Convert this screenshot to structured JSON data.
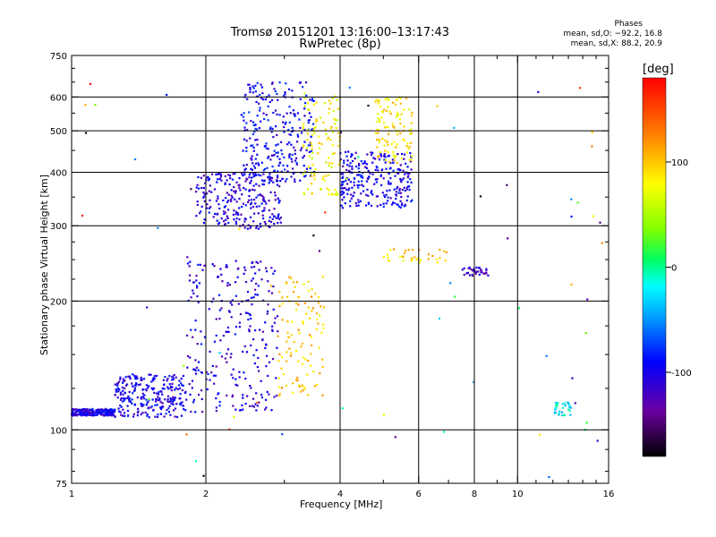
{
  "header": {
    "title_line1": "Tromsø 20151201 13:16:00–13:17:43",
    "title_line2": "RwPretec (8p)",
    "stats_heading": "Phases",
    "stats_o": "mean, sd,O: −92.2, 16.8",
    "stats_x": "mean, sd,X:  88.2, 20.9"
  },
  "chart_data": {
    "type": "scatter",
    "xlabel": "Frequency [MHz]",
    "ylabel": "Stationary phase Virtual Height [km]",
    "x_scale": "log",
    "y_scale": "log",
    "xlim": [
      1,
      16
    ],
    "ylim": [
      75,
      750
    ],
    "x_ticks": [
      1,
      2,
      4,
      6,
      8,
      10,
      16
    ],
    "x_gridlines": [
      2,
      4,
      6,
      8,
      10
    ],
    "y_ticks": [
      75,
      100,
      200,
      300,
      400,
      500,
      600,
      750
    ],
    "y_gridlines": [
      100,
      200,
      300,
      400,
      500,
      600
    ],
    "grid": true,
    "colorbar": {
      "label": "[deg]",
      "range": [
        -180,
        180
      ],
      "ticks": [
        100,
        0,
        -100
      ]
    },
    "series": [
      {
        "x_range": [
          1.0,
          1.25
        ],
        "y_range": [
          108,
          112
        ],
        "phase": -100,
        "density": "high"
      },
      {
        "x_range": [
          1.25,
          1.8
        ],
        "y_range": [
          107,
          135
        ],
        "phase": -100,
        "density": "high"
      },
      {
        "x_range": [
          1.8,
          2.9
        ],
        "y_range": [
          110,
          250
        ],
        "phase": -105,
        "density": "high"
      },
      {
        "x_range": [
          1.9,
          2.95
        ],
        "y_range": [
          295,
          400
        ],
        "phase": -105,
        "density": "high"
      },
      {
        "x_range": [
          2.4,
          3.5
        ],
        "y_range": [
          380,
          650
        ],
        "phase": -95,
        "density": "high"
      },
      {
        "x_range": [
          3.3,
          4.0
        ],
        "y_range": [
          350,
          620
        ],
        "phase": 80,
        "density": "medium"
      },
      {
        "x_range": [
          2.9,
          3.7
        ],
        "y_range": [
          120,
          230
        ],
        "phase": 100,
        "density": "medium"
      },
      {
        "x_range": [
          4.0,
          5.8
        ],
        "y_range": [
          330,
          450
        ],
        "phase": -100,
        "density": "high"
      },
      {
        "x_range": [
          4.8,
          5.8
        ],
        "y_range": [
          420,
          600
        ],
        "phase": 90,
        "density": "medium"
      },
      {
        "x_range": [
          5.0,
          7.0
        ],
        "y_range": [
          245,
          265
        ],
        "phase": 95,
        "density": "low"
      },
      {
        "x_range": [
          7.5,
          8.6
        ],
        "y_range": [
          228,
          240
        ],
        "phase": -120,
        "density": "low"
      },
      {
        "x_range": [
          12.1,
          13.2
        ],
        "y_range": [
          108,
          116
        ],
        "phase": -20,
        "density": "low"
      },
      {
        "x_range": [
          1.0,
          16.0
        ],
        "y_range": [
          75,
          700
        ],
        "phase": 0,
        "density": "scatter"
      }
    ]
  }
}
